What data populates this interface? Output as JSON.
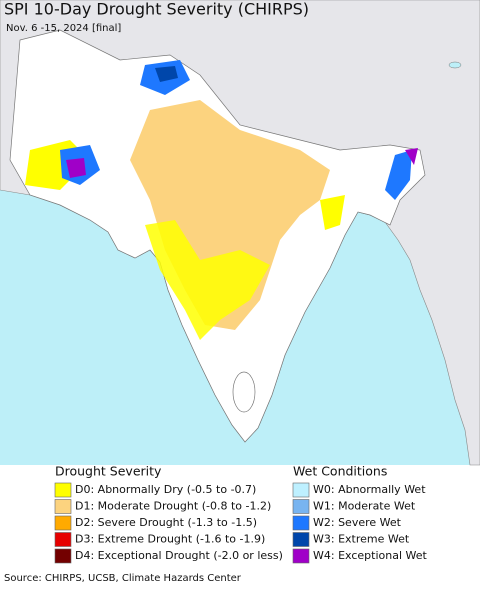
{
  "title": "SPI 10-Day Drought Severity (CHIRPS)",
  "subtitle": "Nov. 6 -15, 2024 [final]",
  "legend": {
    "drought": {
      "title": "Drought Severity",
      "items": [
        {
          "label": "D0: Abnormally Dry (-0.5 to -0.7)",
          "color": "#ffff00"
        },
        {
          "label": "D1: Moderate Drought (-0.8 to -1.2)",
          "color": "#fcd37f"
        },
        {
          "label": "D2: Severe Drought (-1.3 to -1.5)",
          "color": "#ffaa00"
        },
        {
          "label": "D3: Extreme Drought (-1.6 to -1.9)",
          "color": "#e60000"
        },
        {
          "label": "D4: Exceptional Drought (-2.0 or less)",
          "color": "#730000"
        }
      ]
    },
    "wet": {
      "title": "Wet Conditions",
      "items": [
        {
          "label": "W0: Abnormally Wet",
          "color": "#bef0ff"
        },
        {
          "label": "W1: Moderate Wet",
          "color": "#78b4f0"
        },
        {
          "label": "W2: Severe Wet",
          "color": "#1e78ff"
        },
        {
          "label": "W3: Extreme Wet",
          "color": "#0046aa"
        },
        {
          "label": "W4: Exceptional Wet",
          "color": "#a000c8"
        }
      ]
    }
  },
  "source": "Source: CHIRPS, UCSB, Climate Hazards Center"
}
